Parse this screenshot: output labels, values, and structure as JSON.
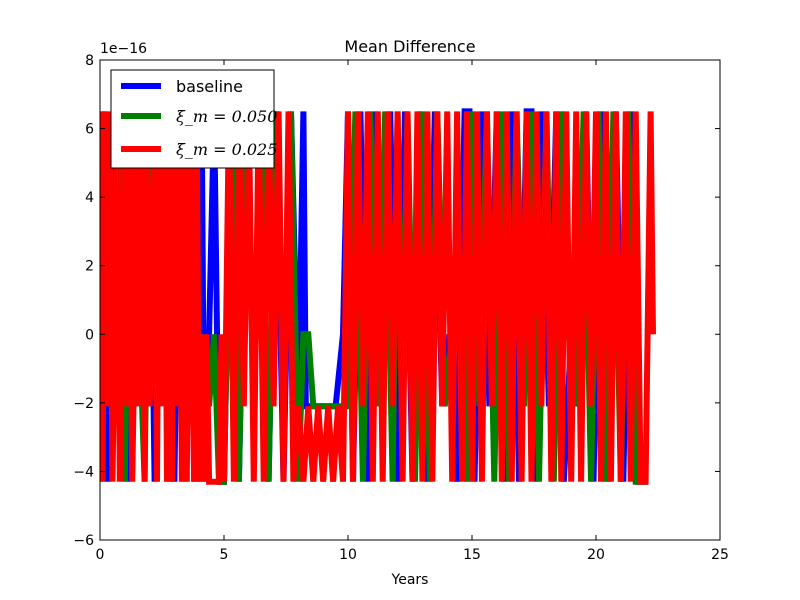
{
  "chart_data": {
    "type": "line",
    "title": "Mean Difference",
    "xlabel": "Years",
    "ylabel": "",
    "offset_text": "1e−16",
    "xlim": [
      0,
      25
    ],
    "ylim": [
      -6,
      8
    ],
    "xticks": [
      0,
      5,
      10,
      15,
      20,
      25
    ],
    "xtick_labels": [
      "0",
      "5",
      "10",
      "15",
      "20",
      "25"
    ],
    "yticks": [
      -6,
      -4,
      -2,
      0,
      2,
      4,
      6,
      8
    ],
    "ytick_labels": [
      "−6",
      "−4",
      "−2",
      "0",
      "2",
      "4",
      "6",
      "8"
    ],
    "grid": false,
    "legend_position": "upper-left",
    "series": [
      {
        "name": "baseline",
        "color": "#0000ff",
        "x": [
          0.0,
          0.1,
          0.3,
          0.5,
          0.6,
          0.7,
          0.9,
          1.1,
          1.3,
          1.5,
          1.7,
          2.0,
          2.2,
          2.5,
          2.7,
          3.0,
          3.2,
          3.4,
          3.6,
          3.8,
          4.0,
          4.1,
          4.2,
          4.4,
          4.6,
          4.8,
          5.0,
          5.3,
          5.6,
          5.9,
          6.2,
          6.5,
          6.8,
          7.1,
          7.4,
          7.7,
          8.0,
          8.2,
          8.3,
          8.5,
          9.0,
          9.5,
          9.8,
          10.0,
          10.2,
          10.5,
          10.8,
          11.1,
          11.4,
          11.7,
          12.0,
          12.3,
          12.6,
          12.9,
          13.2,
          13.5,
          13.8,
          14.1,
          14.4,
          14.7,
          14.9,
          15.1,
          15.4,
          15.7,
          16.0,
          16.3,
          16.6,
          16.9,
          17.2,
          17.4,
          17.6,
          17.8,
          18.1,
          18.4,
          18.7,
          19.0,
          19.3,
          19.6,
          19.9,
          20.2,
          20.5,
          20.8,
          21.1,
          21.4,
          21.7,
          22.0
        ],
        "y": [
          0,
          6.5,
          -4.3,
          0,
          6.5,
          -2.1,
          6.5,
          -4.3,
          0,
          6.5,
          -2.1,
          6.5,
          -4.3,
          6.5,
          0,
          -4.3,
          6.5,
          -2.1,
          6.5,
          -4.3,
          0,
          6.5,
          -4.3,
          0,
          6.5,
          -4.3,
          -4.3,
          6.5,
          -4.3,
          6.5,
          -2.1,
          6.5,
          -4.3,
          6.5,
          -4.3,
          6.5,
          -2.1,
          6.5,
          -2.1,
          -2.1,
          -2.1,
          -2.1,
          0,
          6.5,
          -4.3,
          6.5,
          -4.3,
          6.5,
          -2.1,
          6.5,
          -4.3,
          6.5,
          -4.3,
          6.5,
          -4.3,
          6.5,
          -2.1,
          0,
          -4.3,
          6.5,
          6.5,
          -4.3,
          6.5,
          -2.1,
          6.5,
          -4.3,
          6.5,
          -4.3,
          6.5,
          6.5,
          -4.3,
          6.5,
          -2.1,
          6.5,
          -4.3,
          0,
          -2.1,
          6.5,
          -4.3,
          6.5,
          -4.3,
          6.5,
          -4.3,
          6.5,
          -4.3,
          -4.3
        ]
      },
      {
        "name": "ξ_m = 0.050",
        "color": "#008000",
        "x": [
          0.0,
          0.2,
          0.4,
          0.6,
          0.8,
          1.0,
          1.2,
          1.4,
          1.6,
          1.8,
          2.0,
          2.2,
          2.4,
          2.6,
          2.8,
          3.0,
          3.2,
          3.4,
          3.6,
          3.8,
          4.0,
          4.2,
          4.4,
          4.6,
          4.8,
          5.0,
          5.3,
          5.6,
          5.9,
          6.2,
          6.5,
          6.8,
          7.1,
          7.4,
          7.7,
          8.0,
          8.2,
          8.4,
          8.6,
          9.0,
          9.5,
          10.0,
          10.3,
          10.6,
          10.9,
          11.2,
          11.5,
          11.8,
          12.0,
          12.2,
          12.4,
          12.7,
          13.0,
          13.3,
          13.6,
          13.9,
          14.2,
          14.5,
          14.8,
          15.0,
          15.3,
          15.6,
          15.9,
          16.2,
          16.5,
          16.8,
          17.1,
          17.4,
          17.7,
          18.0,
          18.3,
          18.6,
          18.9,
          19.2,
          19.5,
          19.8,
          20.1,
          20.4,
          20.7,
          21.0,
          21.3,
          21.6,
          21.9,
          22.1
        ],
        "y": [
          -4.3,
          6.5,
          -2.1,
          0,
          6.5,
          -4.3,
          6.5,
          -2.1,
          0,
          -4.3,
          6.5,
          6.5,
          -2.1,
          6.5,
          -4.3,
          0,
          6.5,
          -4.3,
          6.5,
          0,
          -4.3,
          0,
          -2.1,
          0,
          -4.3,
          -4.3,
          6.5,
          -4.3,
          6.5,
          -2.1,
          6.5,
          -4.3,
          6.5,
          -2.1,
          6.5,
          -4.3,
          0,
          0,
          -2.1,
          -2.1,
          -2.1,
          -2.1,
          6.5,
          -4.3,
          6.5,
          -2.1,
          6.5,
          -4.3,
          6.5,
          -2.1,
          6.5,
          -4.3,
          6.5,
          -4.3,
          6.5,
          -2.1,
          0,
          0,
          -4.3,
          6.5,
          -2.1,
          6.5,
          -4.3,
          6.5,
          -4.3,
          6.5,
          -2.1,
          6.5,
          -4.3,
          6.5,
          -4.3,
          6.5,
          0,
          -2.1,
          6.5,
          -4.3,
          6.5,
          -4.3,
          6.5,
          -4.3,
          6.5,
          -4.3,
          -4.3,
          -4.3
        ]
      },
      {
        "name": "ξ_m = 0.025",
        "color": "#ff0000",
        "x": [
          0.0,
          0.1,
          0.2,
          0.3,
          0.4,
          0.5,
          0.6,
          0.7,
          0.8,
          0.9,
          1.0,
          1.1,
          1.2,
          1.3,
          1.4,
          1.5,
          1.6,
          1.7,
          1.8,
          1.9,
          2.0,
          2.1,
          2.2,
          2.3,
          2.4,
          2.5,
          2.6,
          2.7,
          2.8,
          2.9,
          3.0,
          3.1,
          3.2,
          3.3,
          3.4,
          3.5,
          3.6,
          3.7,
          3.8,
          3.9,
          4.0,
          4.1,
          4.2,
          4.3,
          4.4,
          4.5,
          4.6,
          4.7,
          4.8,
          4.9,
          5.0,
          5.2,
          5.4,
          5.6,
          5.8,
          6.0,
          6.2,
          6.4,
          6.6,
          6.8,
          7.0,
          7.2,
          7.4,
          7.6,
          7.8,
          8.0,
          8.2,
          8.4,
          8.6,
          8.8,
          9.0,
          9.2,
          9.4,
          9.6,
          9.8,
          10.0,
          10.2,
          10.4,
          10.6,
          10.8,
          11.0,
          11.2,
          11.4,
          11.6,
          11.8,
          12.0,
          12.2,
          12.4,
          12.6,
          12.8,
          13.0,
          13.2,
          13.4,
          13.6,
          13.8,
          14.0,
          14.2,
          14.4,
          14.6,
          14.8,
          15.0,
          15.2,
          15.4,
          15.6,
          15.8,
          16.0,
          16.2,
          16.4,
          16.6,
          16.8,
          17.0,
          17.2,
          17.4,
          17.6,
          17.8,
          18.0,
          18.2,
          18.4,
          18.6,
          18.8,
          19.0,
          19.2,
          19.4,
          19.6,
          19.8,
          20.0,
          20.2,
          20.4,
          20.6,
          20.8,
          21.0,
          21.2,
          21.4,
          21.6,
          21.8,
          22.0,
          22.2,
          22.3
        ],
        "y": [
          6.5,
          -4.3,
          6.5,
          -2.1,
          6.5,
          -4.3,
          0,
          6.5,
          -4.3,
          0,
          6.5,
          -2.1,
          6.5,
          -4.3,
          0,
          6.5,
          -2.1,
          6.5,
          -4.3,
          6.5,
          -2.1,
          0,
          6.5,
          -4.3,
          6.5,
          -2.1,
          6.5,
          -4.3,
          6.5,
          -4.3,
          6.5,
          -2.1,
          6.5,
          -4.3,
          6.5,
          -4.3,
          6.5,
          0,
          -4.3,
          6.5,
          -4.3,
          0,
          -4.3,
          0,
          -4.3,
          -4.3,
          -4.3,
          -4.3,
          -4.3,
          0,
          -4.3,
          6.5,
          -4.3,
          6.5,
          -2.1,
          6.5,
          -4.3,
          6.5,
          -4.3,
          6.5,
          -2.1,
          6.5,
          -4.3,
          6.5,
          -4.3,
          -2.1,
          -4.3,
          -2.1,
          -4.3,
          -2.1,
          -4.3,
          -2.1,
          -4.3,
          -2.1,
          -4.3,
          6.5,
          -4.3,
          6.5,
          -2.1,
          6.5,
          -4.3,
          6.5,
          -4.3,
          6.5,
          -2.1,
          6.5,
          -4.3,
          6.5,
          -4.3,
          6.5,
          -4.3,
          6.5,
          -4.3,
          6.5,
          -2.1,
          6.5,
          -4.3,
          6.5,
          -4.3,
          6.5,
          -4.3,
          6.5,
          -4.3,
          6.5,
          -2.1,
          6.5,
          -4.3,
          6.5,
          -4.3,
          6.5,
          -4.3,
          6.5,
          -4.3,
          6.5,
          -2.1,
          6.5,
          -4.3,
          6.5,
          -4.3,
          6.5,
          -4.3,
          6.5,
          -4.3,
          6.5,
          -2.1,
          6.5,
          -4.3,
          6.5,
          -4.3,
          6.5,
          -4.3,
          6.5,
          -4.3,
          6.5,
          -4.3,
          -4.3,
          6.5,
          0
        ]
      }
    ]
  }
}
